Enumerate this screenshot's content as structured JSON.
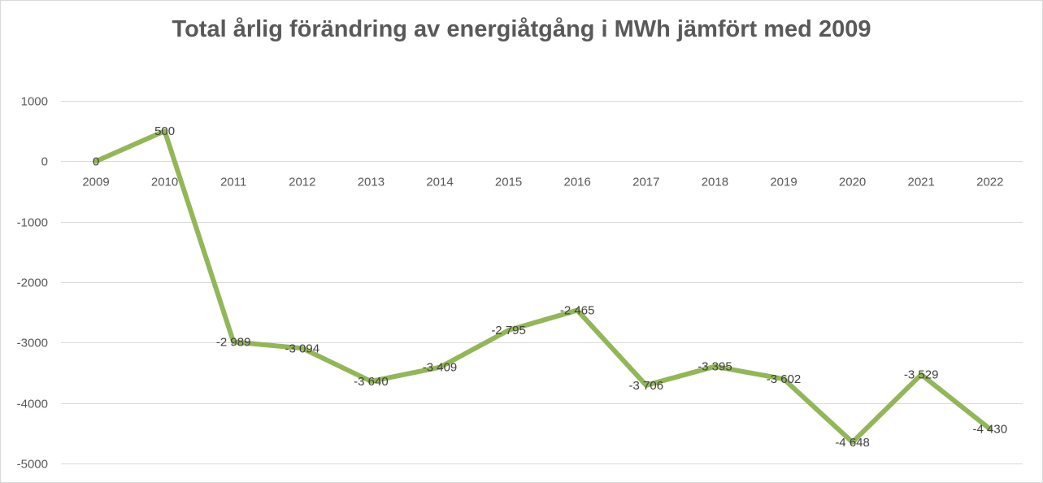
{
  "chart_data": {
    "type": "line",
    "title": "Total årlig förändring av energiåtgång i MWh jämfört med 2009",
    "xlabel": "",
    "ylabel": "",
    "ylim": [
      -5000,
      1000
    ],
    "yticks": [
      1000,
      0,
      -1000,
      -2000,
      -3000,
      -4000,
      -5000
    ],
    "ytick_labels": [
      "1000",
      "0",
      "-1000",
      "-2000",
      "-3000",
      "-4000",
      "-5000"
    ],
    "categories": [
      "2009",
      "2010",
      "2011",
      "2012",
      "2013",
      "2014",
      "2015",
      "2016",
      "2017",
      "2018",
      "2019",
      "2020",
      "2021",
      "2022"
    ],
    "series": [
      {
        "name": "Förändring",
        "color": "#92b757",
        "values": [
          0,
          500,
          -2989,
          -3094,
          -3640,
          -3409,
          -2795,
          -2465,
          -3706,
          -3395,
          -3602,
          -4648,
          -3529,
          -4430
        ],
        "labels": [
          "0",
          "500",
          "-2 989",
          "-3 094",
          "-3 640",
          "-3 409",
          "-2 795",
          "-2 465",
          "-3 706",
          "-3 395",
          "-3 602",
          "-4 648",
          "-3 529",
          "-4 430"
        ]
      }
    ],
    "grid": true,
    "gridColor": "#d9d9d9",
    "legend": "none"
  }
}
